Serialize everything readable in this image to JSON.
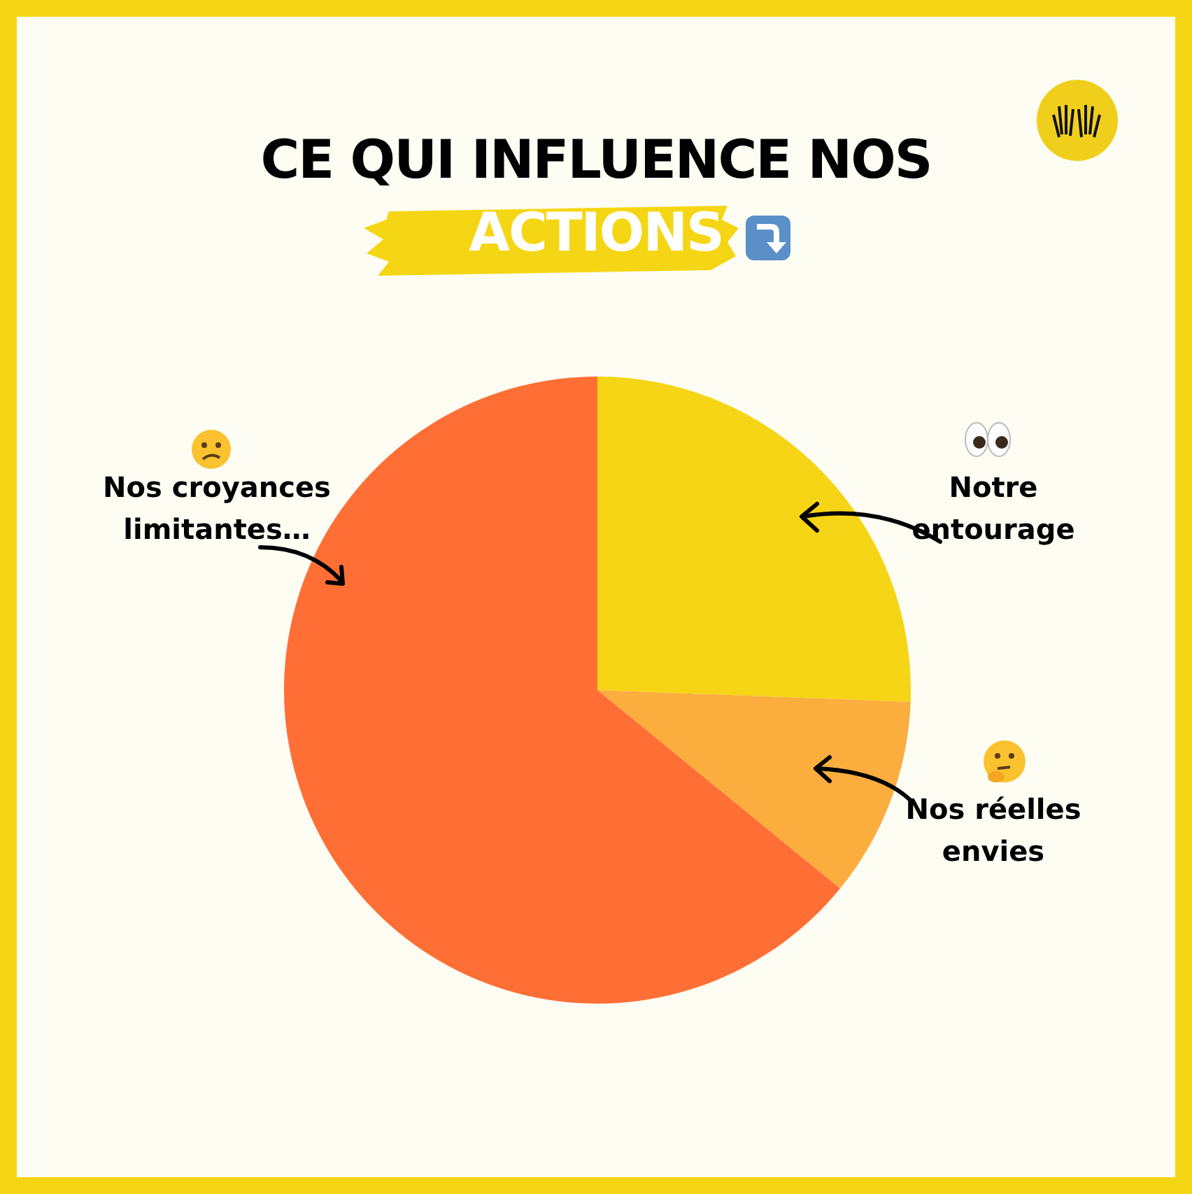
{
  "chart_data": {
    "type": "pie",
    "title": "CE QUI INFLUENCE NOS ACTIONS",
    "categories": [
      "Notre entourage",
      "Nos réelles envies",
      "Nos croyances limitantes…"
    ],
    "values": [
      25.6,
      10.3,
      64.1
    ],
    "colors": [
      "#f5d515",
      "#fbad3d",
      "#ff6f35"
    ],
    "legend": false
  }
}
